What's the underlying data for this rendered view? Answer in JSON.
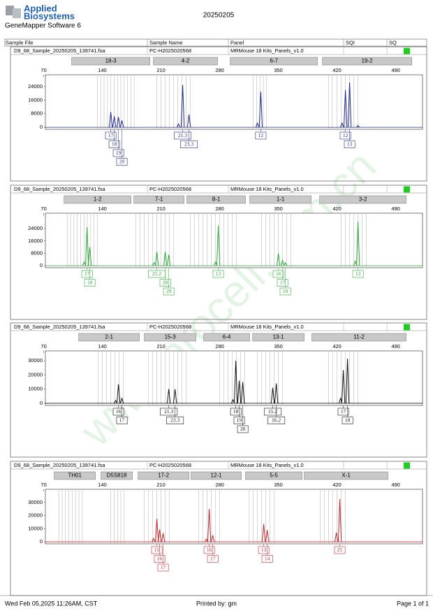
{
  "header": {
    "brand_line1": "Applied",
    "brand_line2": "Biosystems",
    "software": "GeneMapper Software 6",
    "date": "20250205"
  },
  "columns": [
    "Sample File",
    "Sample Name",
    "Panel",
    "SQI",
    "SQ"
  ],
  "watermark": "www.procell.com.cn",
  "panels": [
    {
      "sample_file": "D9_68_Sample_20250205_139741.fsa",
      "sample_name": "PC-H2025020568",
      "panel": "MRMouse 18 Kits_Panels_v1.0",
      "color": "#1f2a8c",
      "xlim": [
        72,
        522
      ],
      "xticks": [
        70,
        140,
        210,
        280,
        350,
        420,
        490
      ],
      "ylim": [
        -1200,
        31000
      ],
      "yticks": [
        0,
        8000,
        16000,
        24000
      ],
      "markers": [
        {
          "label": "18-3",
          "range": [
            103.3,
            196.7
          ]
        },
        {
          "label": "4-2",
          "range": [
            200.8,
            277.5
          ]
        },
        {
          "label": "6-7",
          "range": [
            292.5,
            396.7
          ]
        },
        {
          "label": "19-2",
          "range": [
            402.5,
            509.2
          ]
        }
      ],
      "bins": [
        134,
        138,
        142,
        146,
        150,
        154,
        158,
        162,
        166,
        170,
        174,
        178,
        205,
        210,
        215,
        220,
        225,
        230,
        235,
        240,
        245,
        320,
        324,
        328,
        332,
        336,
        410,
        414,
        420,
        425,
        430,
        435,
        440,
        445
      ],
      "peaks": [
        {
          "x": 150,
          "height": 9000,
          "label": "17"
        },
        {
          "x": 154.2,
          "height": 6500,
          "label": "18"
        },
        {
          "x": 159.2,
          "height": 6000,
          "label": "19"
        },
        {
          "x": 163.3,
          "height": 4000,
          "label": "20"
        },
        {
          "x": 230.8,
          "height": 2000
        },
        {
          "x": 235.8,
          "height": 25000,
          "label": "21.3"
        },
        {
          "x": 243.3,
          "height": 7500,
          "label": "23.3"
        },
        {
          "x": 325,
          "height": 2500
        },
        {
          "x": 329,
          "height": 21000,
          "label": "12"
        },
        {
          "x": 426,
          "height": 2500
        },
        {
          "x": 430,
          "height": 22000,
          "label": "12"
        },
        {
          "x": 435,
          "height": 26500,
          "label": "13"
        },
        {
          "x": 445,
          "height": 1000
        }
      ]
    },
    {
      "sample_file": "D9_68_Sample_20250205_139741.fsa",
      "sample_name": "PC-H2025020568",
      "panel": "MRMouse 18 Kits_Panels_v1.0",
      "color": "#2fa83a",
      "xlim": [
        72,
        522
      ],
      "xticks": [
        70,
        140,
        210,
        280,
        350,
        420,
        490
      ],
      "ylim": [
        -1300,
        34000
      ],
      "yticks": [
        0,
        8000,
        16000,
        24000
      ],
      "markers": [
        {
          "label": "1-2",
          "range": [
            94.2,
            174.2
          ]
        },
        {
          "label": "7-1",
          "range": [
            177.5,
            237.5
          ]
        },
        {
          "label": "8-1",
          "range": [
            240.8,
            310.8
          ]
        },
        {
          "label": "1-1",
          "range": [
            315.8,
            389.2
          ]
        },
        {
          "label": "3-2",
          "range": [
            399.2,
            502.5
          ]
        }
      ],
      "bins": [
        98,
        102,
        106,
        110,
        114,
        118,
        122,
        126,
        130,
        134,
        180,
        185,
        190,
        195,
        200,
        205,
        210,
        215,
        220,
        225,
        245,
        250,
        255,
        260,
        265,
        270,
        275,
        280,
        285,
        290,
        295,
        300,
        330,
        335,
        340,
        345,
        350,
        355,
        360,
        365,
        425,
        430,
        435,
        440,
        445,
        450,
        455
      ],
      "peaks": [
        {
          "x": 118.3,
          "height": 2500
        },
        {
          "x": 121.7,
          "height": 25000,
          "label": "17"
        },
        {
          "x": 125,
          "height": 12000,
          "label": "18"
        },
        {
          "x": 201.7,
          "height": 2000
        },
        {
          "x": 205,
          "height": 9000,
          "label": "25.2"
        },
        {
          "x": 215,
          "height": 9000,
          "label": "28"
        },
        {
          "x": 219.2,
          "height": 7000,
          "label": "29"
        },
        {
          "x": 275,
          "height": 2500
        },
        {
          "x": 278.3,
          "height": 26000,
          "label": "13"
        },
        {
          "x": 350,
          "height": 8000,
          "label": "16"
        },
        {
          "x": 355,
          "height": 3500,
          "label": "17"
        },
        {
          "x": 358.3,
          "height": 2000,
          "label": "18"
        },
        {
          "x": 441.7,
          "height": 3000
        },
        {
          "x": 445,
          "height": 28500,
          "label": "13"
        }
      ]
    },
    {
      "sample_file": "D9_68_Sample_20250205_139741.fsa",
      "sample_name": "PC-H2025020568",
      "panel": "MRMouse 18 Kits_Panels_v1.0",
      "color": "#111111",
      "xlim": [
        72,
        522
      ],
      "xticks": [
        70,
        140,
        210,
        280,
        350,
        420,
        490
      ],
      "ylim": [
        -1500,
        37000
      ],
      "yticks": [
        0,
        10000,
        20000,
        30000
      ],
      "markers": [
        {
          "label": "2-1",
          "range": [
            111.7,
            184.2
          ]
        },
        {
          "label": "15-3",
          "range": [
            190,
            251.7
          ]
        },
        {
          "label": "6-4",
          "range": [
            260.8,
            315.8
          ]
        },
        {
          "label": "13-1",
          "range": [
            319.2,
            380.8
          ]
        },
        {
          "label": "11-2",
          "range": [
            390,
            502.5
          ]
        }
      ],
      "bins": [
        135,
        140,
        145,
        150,
        155,
        160,
        165,
        195,
        200,
        205,
        210,
        215,
        220,
        225,
        230,
        235,
        240,
        280,
        285,
        290,
        295,
        300,
        305,
        310,
        325,
        330,
        335,
        340,
        345,
        350,
        355,
        410,
        415,
        420,
        425,
        430,
        435,
        440,
        445
      ],
      "peaks": [
        {
          "x": 155.8,
          "height": 2000
        },
        {
          "x": 159.2,
          "height": 13500,
          "label": "16"
        },
        {
          "x": 163.3,
          "height": 3500,
          "label": "17"
        },
        {
          "x": 219.2,
          "height": 10000,
          "label": "21.3"
        },
        {
          "x": 226.7,
          "height": 10000,
          "label": "23.3"
        },
        {
          "x": 295.8,
          "height": 2500
        },
        {
          "x": 299.2,
          "height": 30000,
          "label": "18"
        },
        {
          "x": 303.3,
          "height": 16000,
          "label": "19"
        },
        {
          "x": 307.5,
          "height": 15000,
          "label": "20"
        },
        {
          "x": 343.3,
          "height": 11000,
          "label": "15.2"
        },
        {
          "x": 347.5,
          "height": 14000,
          "label": "16.2"
        },
        {
          "x": 424.2,
          "height": 3500
        },
        {
          "x": 427.5,
          "height": 23500,
          "label": "17"
        },
        {
          "x": 432.5,
          "height": 31500,
          "label": "18"
        }
      ]
    },
    {
      "sample_file": "D9_68_Sample_20250205_139741.fsa",
      "sample_name": "PC-H2025020568",
      "panel": "MRMouse 18 Kits_Panels_v1.0",
      "color": "#c0272d",
      "xlim": [
        72,
        522
      ],
      "xticks": [
        70,
        140,
        210,
        280,
        350,
        420,
        490
      ],
      "ylim": [
        -1500,
        40000
      ],
      "yticks": [
        0,
        10000,
        20000,
        30000
      ],
      "markers": [
        {
          "label": "TH01",
          "range": [
            82.5,
            131.7
          ]
        },
        {
          "label": "D5S818",
          "range": [
            138.3,
            175.8
          ]
        },
        {
          "label": "17-2",
          "range": [
            182.5,
            243.3
          ]
        },
        {
          "label": "12-1",
          "range": [
            245.8,
            305.8
          ]
        },
        {
          "label": "5-5",
          "range": [
            310.8,
            378.3
          ]
        },
        {
          "label": "X-1",
          "range": [
            380.8,
            480.8
          ]
        }
      ],
      "bins": [
        88,
        92,
        96,
        100,
        104,
        108,
        112,
        116,
        150,
        154,
        158,
        162,
        166,
        190,
        195,
        200,
        205,
        210,
        215,
        220,
        255,
        260,
        265,
        270,
        275,
        280,
        315,
        320,
        325,
        330,
        335,
        340,
        345,
        400,
        405,
        410,
        415,
        420,
        425,
        430
      ],
      "peaks": [
        {
          "x": 201,
          "height": 2500
        },
        {
          "x": 205,
          "height": 17500,
          "label": "15"
        },
        {
          "x": 208.3,
          "height": 9500,
          "label": "16"
        },
        {
          "x": 212.5,
          "height": 6500,
          "label": "17"
        },
        {
          "x": 264,
          "height": 2000
        },
        {
          "x": 267.5,
          "height": 25000,
          "label": "16"
        },
        {
          "x": 271.7,
          "height": 5000,
          "label": "17"
        },
        {
          "x": 332.5,
          "height": 13500,
          "label": "13"
        },
        {
          "x": 336.7,
          "height": 9000,
          "label": "14"
        },
        {
          "x": 419.2,
          "height": 7000
        },
        {
          "x": 423.3,
          "height": 32500,
          "label": "25"
        }
      ]
    }
  ],
  "footer": {
    "printed_at": "Wed Feb 05,2025 11:26AM, CST",
    "printed_by": "Printed by: gm",
    "page": "Page 1 of 1"
  }
}
